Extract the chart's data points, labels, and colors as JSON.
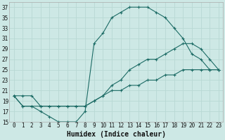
{
  "xlabel": "Humidex (Indice chaleur)",
  "bg_color": "#cde8e5",
  "line_color": "#1c6b65",
  "grid_color": "#b8d8d4",
  "xlim": [
    -0.5,
    23.5
  ],
  "ylim": [
    15,
    38
  ],
  "xticks": [
    0,
    1,
    2,
    3,
    4,
    5,
    6,
    7,
    8,
    9,
    10,
    11,
    12,
    13,
    14,
    15,
    16,
    17,
    18,
    19,
    20,
    21,
    22,
    23
  ],
  "yticks": [
    15,
    17,
    19,
    21,
    23,
    25,
    27,
    29,
    31,
    33,
    35,
    37
  ],
  "series": [
    {
      "x": [
        0,
        1,
        2,
        3,
        4,
        5,
        6,
        7,
        8,
        9,
        10,
        11,
        12,
        13,
        14,
        15,
        16,
        17,
        18,
        19,
        20,
        21,
        22,
        23
      ],
      "y": [
        20,
        18,
        18,
        17,
        16,
        15,
        15,
        15,
        17,
        30,
        32,
        35,
        36,
        37,
        37,
        37,
        36,
        35,
        33,
        31,
        28,
        27,
        25,
        25
      ]
    },
    {
      "x": [
        0,
        1,
        2,
        3,
        4,
        5,
        6,
        7,
        8,
        9,
        10,
        11,
        12,
        13,
        14,
        15,
        16,
        17,
        18,
        19,
        20,
        21,
        22,
        23
      ],
      "y": [
        20,
        18,
        18,
        18,
        18,
        18,
        18,
        18,
        18,
        19,
        20,
        22,
        23,
        25,
        26,
        27,
        27,
        28,
        29,
        30,
        30,
        29,
        27,
        25
      ]
    },
    {
      "x": [
        0,
        1,
        2,
        3,
        4,
        5,
        6,
        7,
        8,
        9,
        10,
        11,
        12,
        13,
        14,
        15,
        16,
        17,
        18,
        19,
        20,
        21,
        22,
        23
      ],
      "y": [
        20,
        20,
        20,
        18,
        18,
        18,
        18,
        18,
        18,
        19,
        20,
        21,
        21,
        22,
        22,
        23,
        23,
        24,
        24,
        25,
        25,
        25,
        25,
        25
      ]
    }
  ],
  "tick_fontsize": 5.5,
  "xlabel_fontsize": 7
}
